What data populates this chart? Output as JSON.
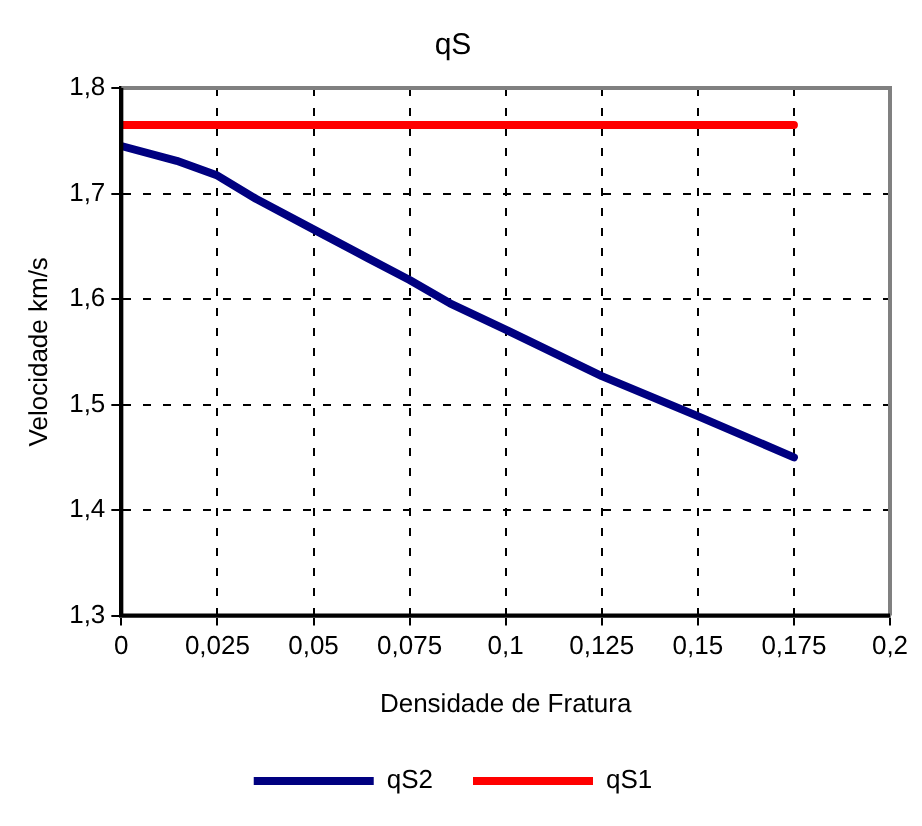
{
  "chart_data": {
    "type": "line",
    "title": "qS",
    "xlabel": "Densidade de Fratura",
    "ylabel": "Velocidade km/s",
    "xlim": [
      0,
      0.2
    ],
    "xticks": [
      0,
      {
        "value": 0.025,
        "label": "0,025"
      },
      {
        "value": 0.05,
        "label": "0,05"
      },
      {
        "value": 0.075,
        "label": "0,075"
      },
      {
        "value": 0.1,
        "label": "0,1"
      },
      {
        "value": 0.125,
        "label": "0,125"
      },
      {
        "value": 0.15,
        "label": "0,15"
      },
      {
        "value": 0.175,
        "label": "0,175"
      },
      {
        "value": 0.2,
        "label": "0,2"
      }
    ],
    "ylim": [
      1.3,
      1.8
    ],
    "yticks": [
      {
        "value": 1.3,
        "label": "1,3"
      },
      {
        "value": 1.4,
        "label": "1,4"
      },
      {
        "value": 1.5,
        "label": "1,5"
      },
      {
        "value": 1.6,
        "label": "1,6"
      },
      {
        "value": 1.7,
        "label": "1,7"
      },
      {
        "value": 1.8,
        "label": "1,8"
      }
    ],
    "series": [
      {
        "name": "qS2",
        "color": "#000080",
        "x": [
          0,
          0.0144,
          0.025,
          0.035,
          0.05,
          0.064,
          0.075,
          0.0855,
          0.1,
          0.125,
          0.15,
          0.175
        ],
        "values": [
          1.745,
          1.731,
          1.717,
          1.695,
          1.666,
          1.639,
          1.618,
          1.596,
          1.571,
          1.527,
          1.489,
          1.45
        ]
      },
      {
        "name": "qS1",
        "color": "#ff0000",
        "x": [
          0,
          0.175
        ],
        "values": [
          1.765,
          1.765
        ]
      }
    ],
    "grid": true,
    "legend": "bottom",
    "marker": "none",
    "line_style": "solid"
  }
}
